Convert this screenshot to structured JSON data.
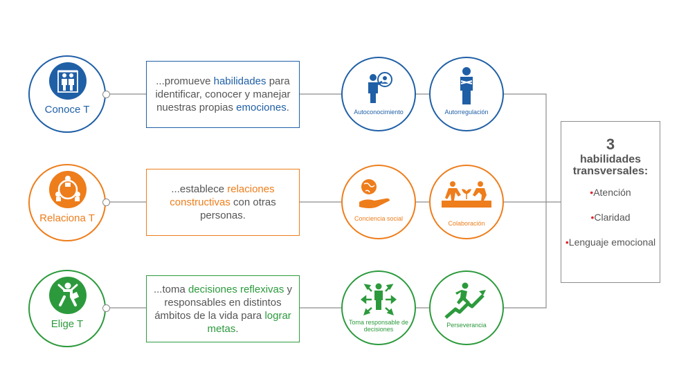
{
  "colors": {
    "blue": "#1f5fa6",
    "orange": "#ee7d1b",
    "green": "#2c9a3c",
    "gray_line": "#8c8c8c",
    "bullet_red": "#e0262c"
  },
  "rows": [
    {
      "name": "Conoce T",
      "icon": "two-people-icon",
      "description_parts": [
        {
          "text": "...promueve ",
          "highlight": false
        },
        {
          "text": "habilidades",
          "highlight": true
        },
        {
          "text": " para identificar, conocer y manejar nuestras propias ",
          "highlight": false
        },
        {
          "text": "emociones",
          "highlight": true
        },
        {
          "text": ".",
          "highlight": false
        }
      ],
      "skills": [
        {
          "label": "Autoconocimiento",
          "icon": "person-mirror-icon"
        },
        {
          "label": "Autorregulación",
          "icon": "person-arms-crossed-icon"
        }
      ]
    },
    {
      "name": "Relaciona T",
      "icon": "people-circle-icon",
      "description_parts": [
        {
          "text": "...establece ",
          "highlight": false
        },
        {
          "text": "relaciones constructivas",
          "highlight": true
        },
        {
          "text": " con otras personas.",
          "highlight": false
        }
      ],
      "skills": [
        {
          "label": "Conciencia social",
          "icon": "hand-globe-icon"
        },
        {
          "label": "Colaboración",
          "icon": "people-planting-icon"
        }
      ]
    },
    {
      "name": "Elige T",
      "icon": "jumping-person-icon",
      "description_parts": [
        {
          "text": "...toma ",
          "highlight": false
        },
        {
          "text": "decisiones reflexivas",
          "highlight": true
        },
        {
          "text": " y responsables en distintos ámbitos de la vida para ",
          "highlight": false
        },
        {
          "text": "lograr metas",
          "highlight": true
        },
        {
          "text": ".",
          "highlight": false
        }
      ],
      "skills": [
        {
          "label": "Toma responsable de decisiones",
          "icon": "person-arrows-icon"
        },
        {
          "label": "Perseverancia",
          "icon": "person-climbing-arrow-icon"
        }
      ]
    }
  ],
  "summary": {
    "number": "3",
    "title": "habilidades transversales:",
    "bullet": "•",
    "items": [
      "Atención",
      "Claridad",
      "Lenguaje emocional"
    ]
  }
}
